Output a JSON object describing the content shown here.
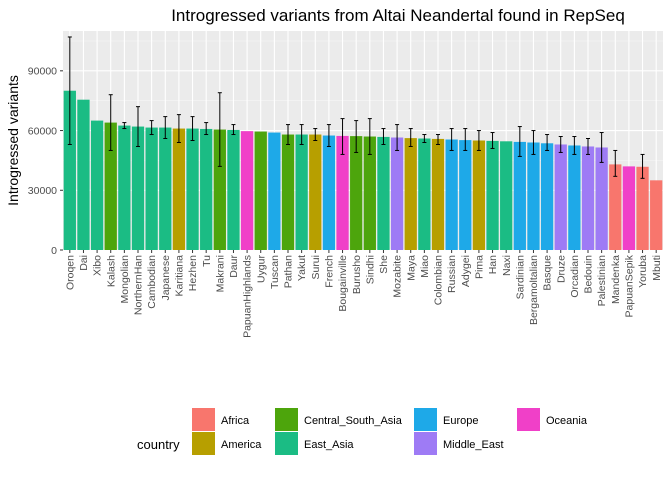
{
  "chart_data": {
    "type": "bar",
    "title": "Introgressed variants from Altai Neandertal found in RepSeq",
    "xlabel": "",
    "ylabel": "Introgressed variants",
    "ylim": [
      0,
      110000
    ],
    "y_ticks": [
      0,
      30000,
      60000,
      90000
    ],
    "grid": true,
    "legend": {
      "title": "country",
      "placement": "bottom",
      "entries": [
        {
          "name": "Africa",
          "color": "#F8766D"
        },
        {
          "name": "America",
          "color": "#B79F00"
        },
        {
          "name": "Central_South_Asia",
          "color": "#4DA50C"
        },
        {
          "name": "East_Asia",
          "color": "#1BBC84"
        },
        {
          "name": "Europe",
          "color": "#1EA9E8"
        },
        {
          "name": "Middle_East",
          "color": "#9E7BF5"
        },
        {
          "name": "Oceania",
          "color": "#F040C8"
        }
      ]
    },
    "bars": [
      {
        "category": "Oroqen",
        "value": 80000,
        "err_low": 53000,
        "err_high": 107000,
        "group": "East_Asia"
      },
      {
        "category": "Dai",
        "value": 75500,
        "group": "East_Asia"
      },
      {
        "category": "Xibo",
        "value": 65000,
        "group": "East_Asia"
      },
      {
        "category": "Kalash",
        "value": 64000,
        "err_low": 50000,
        "err_high": 78000,
        "group": "Central_South_Asia"
      },
      {
        "category": "Mongolian",
        "value": 62500,
        "err_low": 61000,
        "err_high": 64000,
        "group": "East_Asia"
      },
      {
        "category": "NorthernHan",
        "value": 62000,
        "err_low": 52000,
        "err_high": 72000,
        "group": "East_Asia"
      },
      {
        "category": "Cambodian",
        "value": 61500,
        "err_low": 58000,
        "err_high": 65000,
        "group": "East_Asia"
      },
      {
        "category": "Japanese",
        "value": 61500,
        "err_low": 56000,
        "err_high": 67000,
        "group": "East_Asia"
      },
      {
        "category": "Karitiana",
        "value": 61000,
        "err_low": 54000,
        "err_high": 68000,
        "group": "America"
      },
      {
        "category": "Hezhen",
        "value": 61000,
        "err_low": 55000,
        "err_high": 67000,
        "group": "East_Asia"
      },
      {
        "category": "Tu",
        "value": 60800,
        "err_low": 58000,
        "err_high": 64000,
        "group": "East_Asia"
      },
      {
        "category": "Makrani",
        "value": 60500,
        "err_low": 42000,
        "err_high": 79000,
        "group": "Central_South_Asia"
      },
      {
        "category": "Daur",
        "value": 60300,
        "err_low": 58000,
        "err_high": 63000,
        "group": "East_Asia"
      },
      {
        "category": "PapuanHighlands",
        "value": 59700,
        "group": "Oceania"
      },
      {
        "category": "Uygur",
        "value": 59500,
        "group": "Central_South_Asia"
      },
      {
        "category": "Tuscan",
        "value": 59000,
        "group": "Europe"
      },
      {
        "category": "Pathan",
        "value": 58000,
        "err_low": 53000,
        "err_high": 63000,
        "group": "Central_South_Asia"
      },
      {
        "category": "Yakut",
        "value": 58000,
        "err_low": 53000,
        "err_high": 63000,
        "group": "East_Asia"
      },
      {
        "category": "Surui",
        "value": 58000,
        "err_low": 55000,
        "err_high": 61000,
        "group": "America"
      },
      {
        "category": "French",
        "value": 57500,
        "err_low": 52000,
        "err_high": 63000,
        "group": "Europe"
      },
      {
        "category": "Bougainville",
        "value": 57300,
        "err_low": 48000,
        "err_high": 66000,
        "group": "Oceania"
      },
      {
        "category": "Burusho",
        "value": 57200,
        "err_low": 49000,
        "err_high": 65000,
        "group": "Central_South_Asia"
      },
      {
        "category": "Sindhi",
        "value": 57000,
        "err_low": 48000,
        "err_high": 66000,
        "group": "Central_South_Asia"
      },
      {
        "category": "She",
        "value": 56800,
        "err_low": 53000,
        "err_high": 61000,
        "group": "East_Asia"
      },
      {
        "category": "Mozabite",
        "value": 56500,
        "err_low": 50000,
        "err_high": 63000,
        "group": "Middle_East"
      },
      {
        "category": "Maya",
        "value": 56200,
        "err_low": 52000,
        "err_high": 61000,
        "group": "America"
      },
      {
        "category": "Miao",
        "value": 56000,
        "err_low": 54000,
        "err_high": 58000,
        "group": "East_Asia"
      },
      {
        "category": "Colombian",
        "value": 55800,
        "err_low": 53000,
        "err_high": 58000,
        "group": "America"
      },
      {
        "category": "Russian",
        "value": 55500,
        "err_low": 50000,
        "err_high": 61000,
        "group": "Europe"
      },
      {
        "category": "Adygei",
        "value": 55200,
        "err_low": 50000,
        "err_high": 61000,
        "group": "Europe"
      },
      {
        "category": "Pima",
        "value": 55000,
        "err_low": 50000,
        "err_high": 60000,
        "group": "America"
      },
      {
        "category": "Han",
        "value": 54800,
        "err_low": 51000,
        "err_high": 59000,
        "group": "East_Asia"
      },
      {
        "category": "Naxi",
        "value": 54600,
        "group": "East_Asia"
      },
      {
        "category": "Sardinian",
        "value": 54300,
        "err_low": 47000,
        "err_high": 62000,
        "group": "Europe"
      },
      {
        "category": "Bergamoltalian",
        "value": 54000,
        "err_low": 48000,
        "err_high": 60000,
        "group": "Europe"
      },
      {
        "category": "Basque",
        "value": 53600,
        "err_low": 50000,
        "err_high": 58000,
        "group": "Europe"
      },
      {
        "category": "Druze",
        "value": 53000,
        "err_low": 49000,
        "err_high": 57000,
        "group": "Middle_East"
      },
      {
        "category": "Orcadian",
        "value": 52500,
        "err_low": 48000,
        "err_high": 57000,
        "group": "Europe"
      },
      {
        "category": "Bedouin",
        "value": 52000,
        "err_low": 48000,
        "err_high": 56000,
        "group": "Middle_East"
      },
      {
        "category": "Palestinian",
        "value": 51500,
        "err_low": 44000,
        "err_high": 59000,
        "group": "Middle_East"
      },
      {
        "category": "Mandenka",
        "value": 43000,
        "err_low": 37000,
        "err_high": 50000,
        "group": "Africa"
      },
      {
        "category": "PapuanSepik",
        "value": 42000,
        "group": "Oceania"
      },
      {
        "category": "Yoruba",
        "value": 41800,
        "err_low": 36000,
        "err_high": 48000,
        "group": "Africa"
      },
      {
        "category": "Mbuti",
        "value": 35000,
        "group": "Africa"
      }
    ]
  }
}
